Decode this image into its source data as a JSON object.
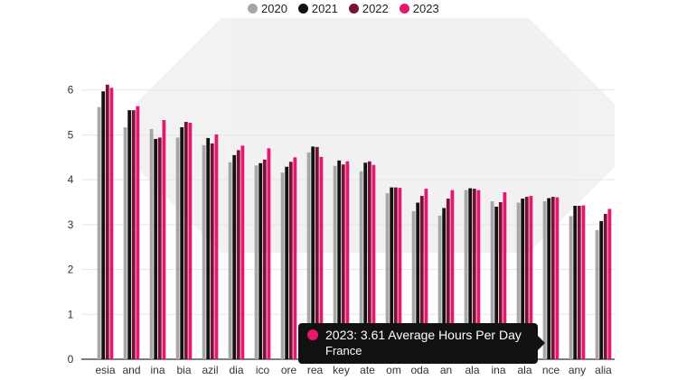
{
  "legend": {
    "items": [
      {
        "label": "2020",
        "color": "#a6a6a6"
      },
      {
        "label": "2021",
        "color": "#111111"
      },
      {
        "label": "2022",
        "color": "#7a1236"
      },
      {
        "label": "2023",
        "color": "#e8166e"
      }
    ]
  },
  "tooltip": {
    "line1": "2023: 3.61 Average Hours Per Day",
    "line2": "France",
    "dot_color": "#e8166e"
  },
  "chart_data": {
    "type": "bar",
    "title": "",
    "xlabel": "",
    "ylabel": "",
    "ylim": [
      0,
      6.9
    ],
    "yticks": [
      0,
      1,
      2,
      3,
      4,
      5,
      6
    ],
    "grid": true,
    "legend_position": "top",
    "categories": [
      "esia",
      "and",
      "ina",
      "bia",
      "azil",
      "dia",
      "ico",
      "ore",
      "rea",
      "key",
      "ate",
      "om",
      "oda",
      "an",
      "ala",
      "ina",
      "ala",
      "nce",
      "any",
      "alia"
    ],
    "series": [
      {
        "name": "2020",
        "color": "#a6a6a6",
        "values": [
          5.62,
          5.17,
          5.13,
          4.94,
          4.77,
          4.39,
          4.32,
          4.16,
          4.61,
          4.31,
          4.19,
          3.7,
          3.3,
          3.2,
          3.77,
          3.52,
          3.49,
          3.52,
          3.19,
          2.88
        ]
      },
      {
        "name": "2021",
        "color": "#111111",
        "values": [
          5.97,
          5.55,
          4.91,
          5.17,
          4.93,
          4.55,
          4.37,
          4.29,
          4.74,
          4.43,
          4.38,
          3.83,
          3.49,
          3.37,
          3.81,
          3.4,
          3.58,
          3.59,
          3.42,
          3.08
        ]
      },
      {
        "name": "2022",
        "color": "#7a1236",
        "values": [
          6.12,
          5.55,
          4.94,
          5.29,
          4.81,
          4.66,
          4.45,
          4.4,
          4.73,
          4.34,
          4.41,
          3.83,
          3.64,
          3.58,
          3.8,
          3.5,
          3.62,
          3.62,
          3.42,
          3.24
        ]
      },
      {
        "name": "2023",
        "color": "#e8166e",
        "values": [
          6.05,
          5.64,
          5.33,
          5.27,
          5.01,
          4.76,
          4.7,
          4.5,
          4.51,
          4.41,
          4.33,
          3.82,
          3.8,
          3.77,
          3.77,
          3.72,
          3.64,
          3.61,
          3.43,
          3.35
        ]
      }
    ]
  }
}
